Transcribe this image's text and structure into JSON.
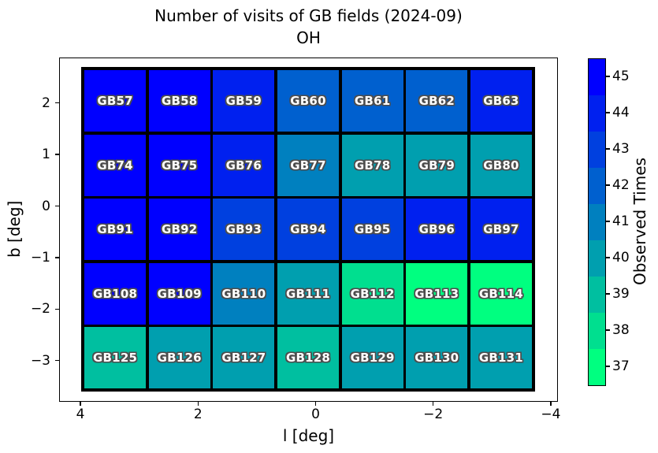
{
  "title": {
    "line1": "Number of visits of GB fields (2024-09)",
    "line2": "OH"
  },
  "axes": {
    "xlabel": "l [deg]",
    "ylabel": "b [deg]",
    "x_ticks": [
      {
        "value": 4,
        "label": "4"
      },
      {
        "value": 2,
        "label": "2"
      },
      {
        "value": 0,
        "label": "0"
      },
      {
        "value": -2,
        "label": "−2"
      },
      {
        "value": -4,
        "label": "−4"
      }
    ],
    "y_ticks": [
      {
        "value": 2,
        "label": "2"
      },
      {
        "value": 1,
        "label": "1"
      },
      {
        "value": 0,
        "label": "0"
      },
      {
        "value": -1,
        "label": "−1"
      },
      {
        "value": -2,
        "label": "−2"
      },
      {
        "value": -3,
        "label": "−3"
      }
    ]
  },
  "colorbar": {
    "label": "Observed Times",
    "ticks": [
      45,
      44,
      43,
      42,
      41,
      40,
      39,
      38,
      37
    ],
    "vmin": 36.5,
    "vmax": 45.5
  },
  "color_scale": {
    "37": "#00FF80",
    "38": "#00DF8F",
    "39": "#00BFA0",
    "40": "#009FAF",
    "41": "#0080BF",
    "42": "#0060CF",
    "43": "#0040DF",
    "44": "#0020EF",
    "45": "#0000FF"
  },
  "colors": {
    "background": "#ffffff",
    "grid_line": "#000000",
    "cell_label": "#ffffff",
    "cell_label_outline": "#4d4d4d"
  },
  "chart_data": {
    "type": "heatmap",
    "title": "Number of visits of GB fields (2024-09)",
    "subtitle": "OH",
    "xlabel": "l [deg]",
    "ylabel": "b [deg]",
    "colorbar_label": "Observed Times",
    "colormap": "winter_r",
    "x_axis_reversed": true,
    "x_tick_values": [
      4,
      2,
      0,
      -2,
      -4
    ],
    "y_tick_values": [
      2,
      1,
      0,
      -1,
      -2,
      -3
    ],
    "legend_position": "right-colorbar",
    "grid_on": false,
    "rows": [
      {
        "fields": [
          "GB57",
          "GB58",
          "GB59",
          "GB60",
          "GB61",
          "GB62",
          "GB63"
        ],
        "values": [
          45,
          45,
          44,
          42,
          42,
          42,
          44
        ]
      },
      {
        "fields": [
          "GB74",
          "GB75",
          "GB76",
          "GB77",
          "GB78",
          "GB79",
          "GB80"
        ],
        "values": [
          45,
          45,
          44,
          41,
          40,
          40,
          40
        ]
      },
      {
        "fields": [
          "GB91",
          "GB92",
          "GB93",
          "GB94",
          "GB95",
          "GB96",
          "GB97"
        ],
        "values": [
          45,
          45,
          43,
          43,
          43,
          44,
          44
        ]
      },
      {
        "fields": [
          "GB108",
          "GB109",
          "GB110",
          "GB111",
          "GB112",
          "GB113",
          "GB114"
        ],
        "values": [
          45,
          45,
          41,
          40,
          38,
          37,
          37
        ]
      },
      {
        "fields": [
          "GB125",
          "GB126",
          "GB127",
          "GB128",
          "GB129",
          "GB130",
          "GB131"
        ],
        "values": [
          39,
          40,
          40,
          39,
          40,
          40,
          40
        ]
      }
    ]
  }
}
